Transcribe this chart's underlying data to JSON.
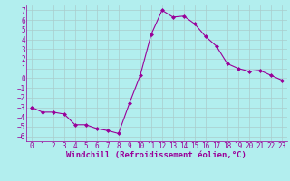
{
  "x": [
    0,
    1,
    2,
    3,
    4,
    5,
    6,
    7,
    8,
    9,
    10,
    11,
    12,
    13,
    14,
    15,
    16,
    17,
    18,
    19,
    20,
    21,
    22,
    23
  ],
  "y": [
    -3,
    -3.5,
    -3.5,
    -3.7,
    -4.8,
    -4.8,
    -5.2,
    -5.4,
    -5.7,
    -2.6,
    0.3,
    4.5,
    7.0,
    6.3,
    6.4,
    5.6,
    4.3,
    3.3,
    1.5,
    1.0,
    0.7,
    0.8,
    0.3,
    -0.2
  ],
  "line_color": "#990099",
  "marker": "D",
  "marker_size": 2.0,
  "bg_color": "#b2eeee",
  "grid_color": "#aacccc",
  "xlabel": "Windchill (Refroidissement éolien,°C)",
  "ylim": [
    -6.5,
    7.5
  ],
  "xlim": [
    -0.5,
    23.5
  ],
  "yticks": [
    -6,
    -5,
    -4,
    -3,
    -2,
    -1,
    0,
    1,
    2,
    3,
    4,
    5,
    6,
    7
  ],
  "xticks": [
    0,
    1,
    2,
    3,
    4,
    5,
    6,
    7,
    8,
    9,
    10,
    11,
    12,
    13,
    14,
    15,
    16,
    17,
    18,
    19,
    20,
    21,
    22,
    23
  ],
  "tick_fontsize": 5.5,
  "xlabel_fontsize": 6.5
}
